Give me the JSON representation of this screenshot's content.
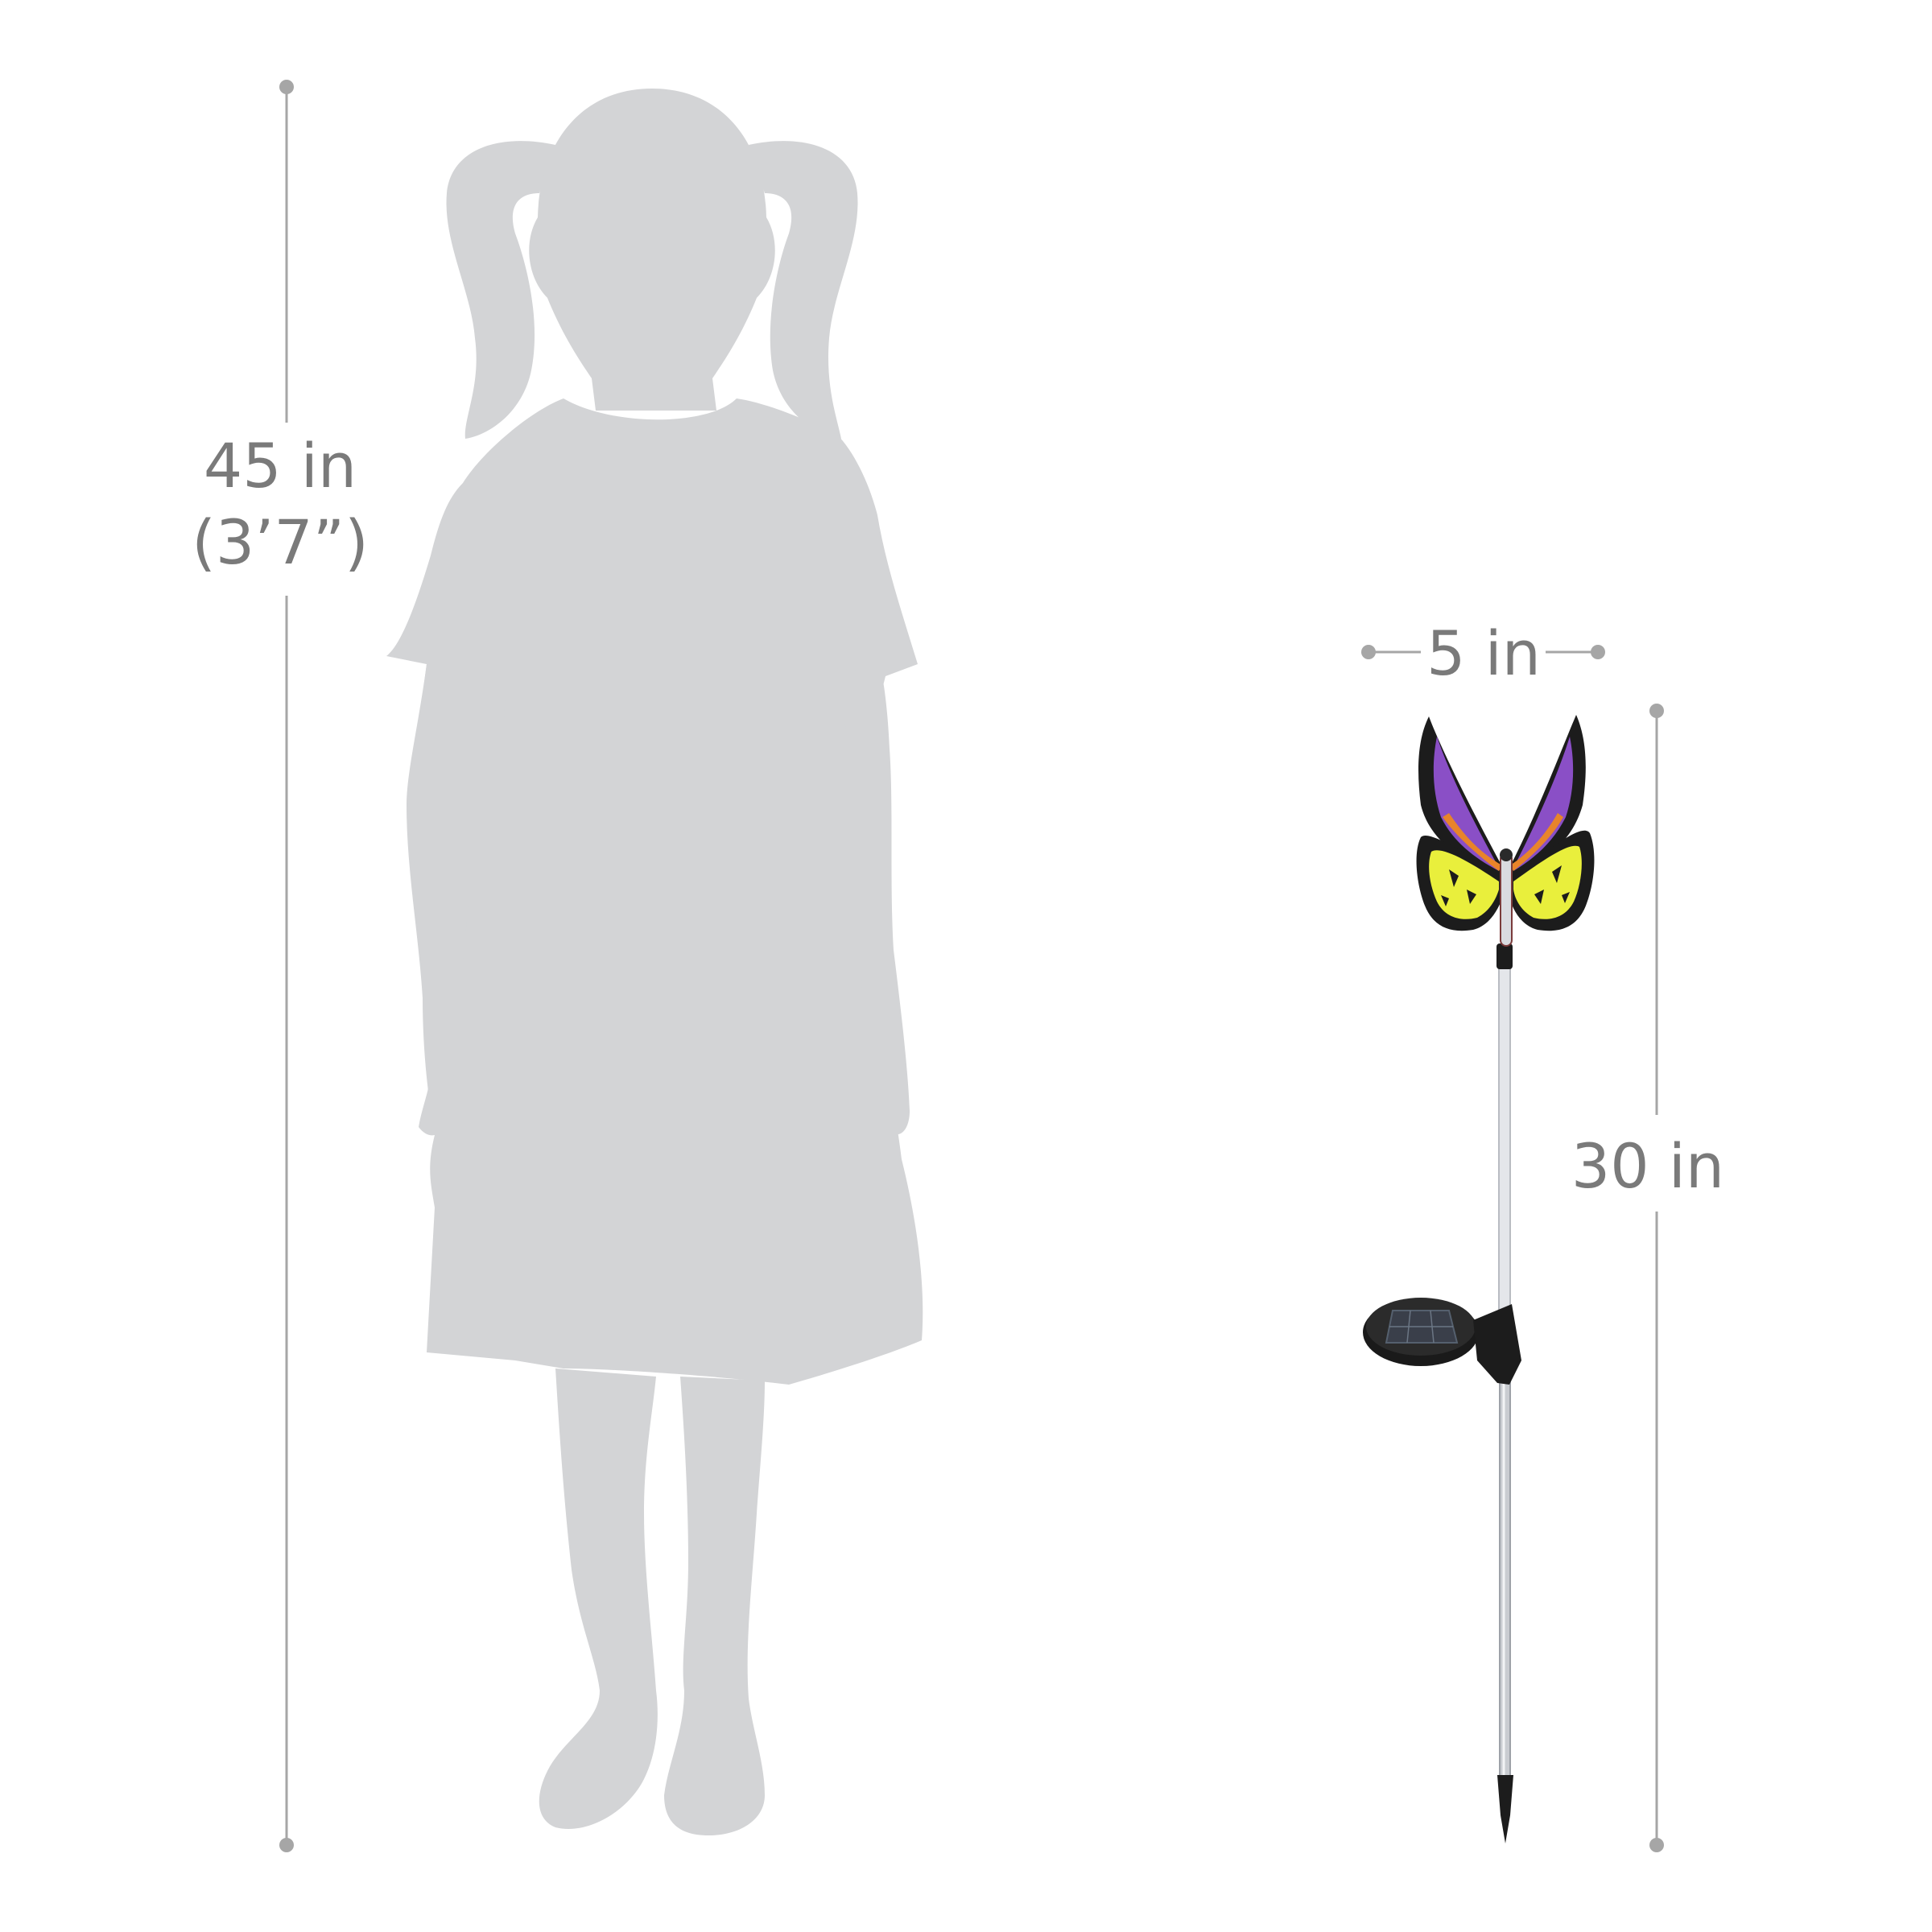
{
  "dimensions": {
    "child_height": {
      "value": "45 in",
      "value_alt": "(3’7”)"
    },
    "stake_width": {
      "value": "5 in"
    },
    "stake_height": {
      "value": "30 in"
    }
  },
  "colors": {
    "silhouette": "#d3d4d6",
    "dimension_line": "#a6a6a6",
    "dimension_text": "#7a7a7a",
    "wing_purple": "#8a4fc6",
    "wing_yellow": "#e9ef3c",
    "wing_orange": "#e8842a",
    "wing_black": "#1c1c1c",
    "pole": "#c9ccd1",
    "solar_panel": "#1a1a1a"
  }
}
